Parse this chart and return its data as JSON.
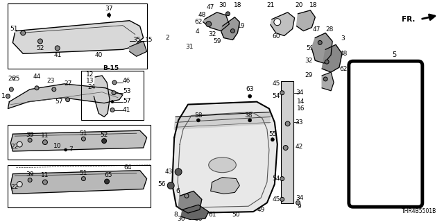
{
  "bg_color": "#ffffff",
  "line_color": "#000000",
  "diagram_id": "THR4B5501B",
  "fig_width": 6.4,
  "fig_height": 3.2,
  "dpi": 100
}
